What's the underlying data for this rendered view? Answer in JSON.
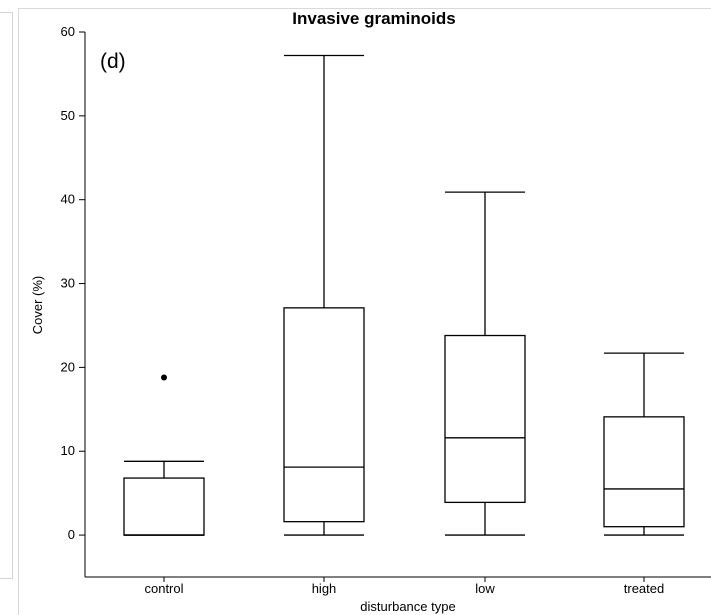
{
  "chart_data": {
    "type": "box",
    "title": "Invasive graminoids",
    "panel_label": "(d)",
    "xlabel": "disturbance type",
    "ylabel": "Cover (%)",
    "ylim": [
      -5,
      60
    ],
    "yticks": [
      0,
      10,
      20,
      30,
      40,
      50,
      60
    ],
    "categories": [
      "control",
      "high",
      "low",
      "treated"
    ],
    "boxes": [
      {
        "category": "control",
        "whisker_low": 0,
        "q1": 0,
        "median": 0,
        "q3": 6.8,
        "whisker_high": 8.8,
        "outliers": [
          18.8
        ]
      },
      {
        "category": "high",
        "whisker_low": 0,
        "q1": 1.6,
        "median": 8.1,
        "q3": 27.1,
        "whisker_high": 57.2,
        "outliers": []
      },
      {
        "category": "low",
        "whisker_low": 0,
        "q1": 3.9,
        "median": 11.6,
        "q3": 23.8,
        "whisker_high": 40.9,
        "outliers": []
      },
      {
        "category": "treated",
        "whisker_low": 0,
        "q1": 1.0,
        "median": 5.5,
        "q3": 14.1,
        "whisker_high": 21.7,
        "outliers": []
      }
    ],
    "grid": false,
    "colors": {
      "box_stroke": "#000000",
      "axis": "#000000",
      "frame": "#d9d9d9"
    }
  }
}
